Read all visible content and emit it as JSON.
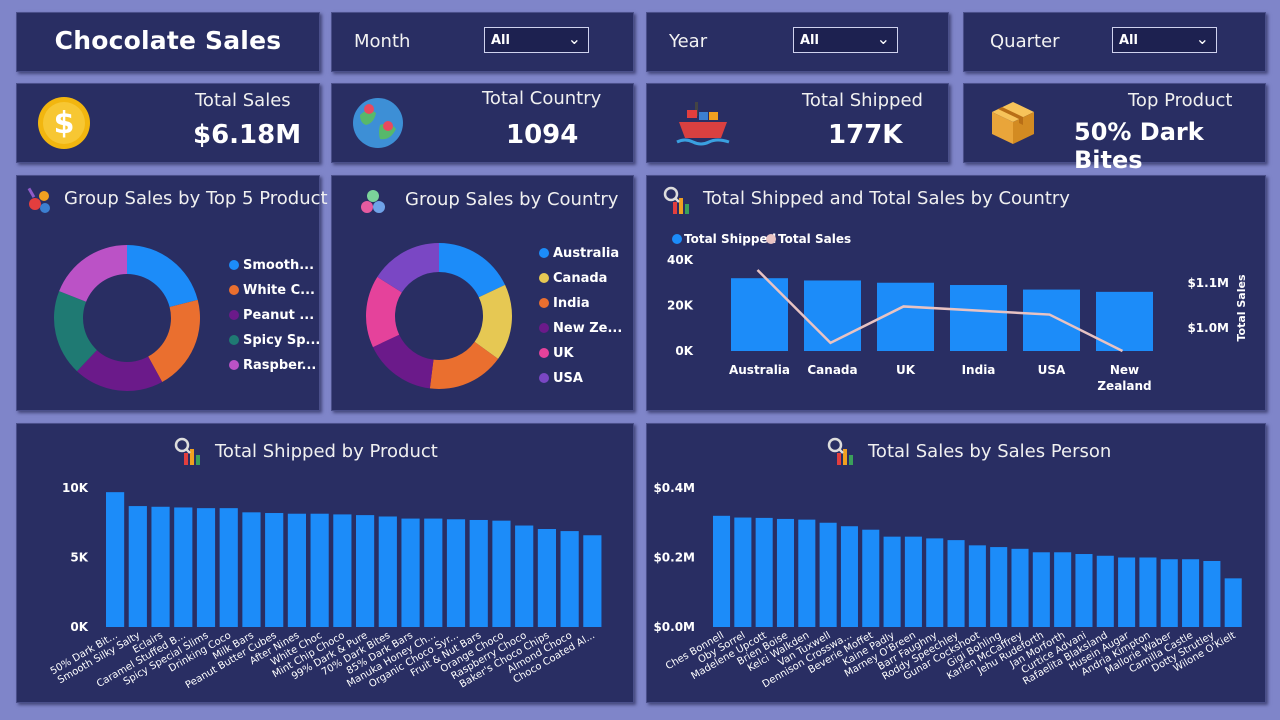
{
  "header": {
    "title": "Chocolate Sales"
  },
  "slicers": [
    {
      "label": "Month",
      "value": "All"
    },
    {
      "label": "Year",
      "value": "All"
    },
    {
      "label": "Quarter",
      "value": "All"
    }
  ],
  "kpis": [
    {
      "label": "Total Sales",
      "value": "$6.18M",
      "icon": "dollar-coin-icon"
    },
    {
      "label": "Total Country",
      "value": "1094",
      "icon": "globe-icon"
    },
    {
      "label": "Total Shipped",
      "value": "177K",
      "icon": "cargo-ship-icon"
    },
    {
      "label": "Top Product",
      "value": "50% Dark Bites",
      "icon": "package-box-icon"
    }
  ],
  "colors": {
    "background": "#7f85c9",
    "panel": "#292e63",
    "bar": "#1c8cf9",
    "line": "#e8c3c3",
    "donut": [
      "#1c8cf9",
      "#ea6f2f",
      "#6b1a8a",
      "#1f7a73",
      "#bb52c6",
      "#e6c853",
      "#e5429b",
      "#7a47c4"
    ]
  },
  "visuals": {
    "top5_product": {
      "title": "Group Sales by Top 5 Product",
      "icon": "candy-icon",
      "chart_data": {
        "type": "pie",
        "categories": [
          "Smooth...",
          "White C...",
          "Peanut ...",
          "Spicy Sp...",
          "Raspber..."
        ],
        "values": [
          21,
          21,
          20,
          19,
          19
        ],
        "colors": [
          "#1c8cf9",
          "#ea6f2f",
          "#6b1a8a",
          "#1f7a73",
          "#bb52c6"
        ],
        "legend": "right"
      }
    },
    "by_country": {
      "title": "Group Sales by Country",
      "icon": "spheres-icon",
      "chart_data": {
        "type": "pie",
        "categories": [
          "Australia",
          "Canada",
          "India",
          "New Ze...",
          "UK",
          "USA"
        ],
        "values": [
          18,
          17,
          17,
          16,
          16,
          16
        ],
        "colors": [
          "#1c8cf9",
          "#e6c853",
          "#ea6f2f",
          "#6b1a8a",
          "#e5429b",
          "#7a47c4"
        ],
        "legend": "right"
      }
    },
    "shipped_sales_country": {
      "title": "Total Shipped and Total Sales by Country",
      "icon": "chart-magnifier-icon",
      "chart_data": {
        "type": "bar",
        "categories": [
          "Australia",
          "Canada",
          "UK",
          "India",
          "USA",
          "New Zealand"
        ],
        "series": [
          {
            "name": "Total Shipped",
            "values": [
              32000,
              31000,
              30000,
              29000,
              27000,
              26000
            ]
          },
          {
            "name": "Total Sales",
            "values": [
              1.14,
              0.96,
              1.05,
              1.04,
              1.03,
              0.94
            ]
          }
        ],
        "ylim": [
          0,
          40000
        ],
        "y_ticks": [
          "40K",
          "20K",
          "0K"
        ],
        "y2_label": "Total Sales",
        "y2_ticks": [
          "$1.1M",
          "$1.0M"
        ],
        "legend": "top-left"
      }
    },
    "shipped_by_product": {
      "title": "Total Shipped by Product",
      "icon": "chart-magnifier-icon",
      "chart_data": {
        "type": "bar",
        "categories": [
          "50% Dark Bit...",
          "Smooth Silky Salty",
          "Eclairs",
          "Caramel Stuffed B...",
          "Spicy Special Slims",
          "Drinking Coco",
          "Milk Bars",
          "Peanut Butter Cubes",
          "After Nines",
          "White Choc",
          "Mint Chip Choco",
          "99% Dark & Pure",
          "70% Dark Bites",
          "85% Dark Bars",
          "Manuka Honey Ch...",
          "Organic Choco Syr...",
          "Fruit & Nut Bars",
          "Orange Choco",
          "Raspberry Choco",
          "Baker's Choco Chips",
          "Almond Choco",
          "Choco Coated Al..."
        ],
        "values": [
          9700,
          8700,
          8650,
          8600,
          8550,
          8550,
          8250,
          8200,
          8150,
          8150,
          8100,
          8050,
          7950,
          7800,
          7800,
          7750,
          7700,
          7650,
          7300,
          7050,
          6900,
          6600
        ],
        "ylim": [
          0,
          10000
        ],
        "y_ticks": [
          "10K",
          "5K",
          "0K"
        ]
      }
    },
    "sales_by_person": {
      "title": "Total Sales by Sales Person",
      "icon": "chart-magnifier-icon",
      "chart_data": {
        "type": "bar",
        "categories": [
          "Ches Bonnell",
          "Oby Sorrel",
          "Madelene Upcott",
          "Brien Boise",
          "Kelci Walkden",
          "Van Tuxwell",
          "Dennison Crosswa...",
          "Beverie Moffet",
          "Kaine Padly",
          "Marney O'Breen",
          "Barr Faughny",
          "Roddy Speechley",
          "Gunar Cockshoot",
          "Gigi Bohling",
          "Karlen McCaffrey",
          "Jehu Rudeforth",
          "Jan Morforth",
          "Curtice Advani",
          "Rafaelita Blaksland",
          "Husein Augar",
          "Andria Kimpton",
          "Mallorie Waber",
          "Camilla Castle",
          "Dotty Strutley",
          "Wilone O'Kielt"
        ],
        "values": [
          0.32,
          0.315,
          0.314,
          0.311,
          0.309,
          0.3,
          0.29,
          0.28,
          0.26,
          0.26,
          0.255,
          0.25,
          0.235,
          0.23,
          0.225,
          0.215,
          0.215,
          0.21,
          0.205,
          0.2,
          0.2,
          0.195,
          0.195,
          0.19,
          0.14
        ],
        "ylim": [
          0,
          0.4
        ],
        "y_ticks": [
          "$0.4M",
          "$0.2M",
          "$0.0M"
        ]
      }
    }
  }
}
